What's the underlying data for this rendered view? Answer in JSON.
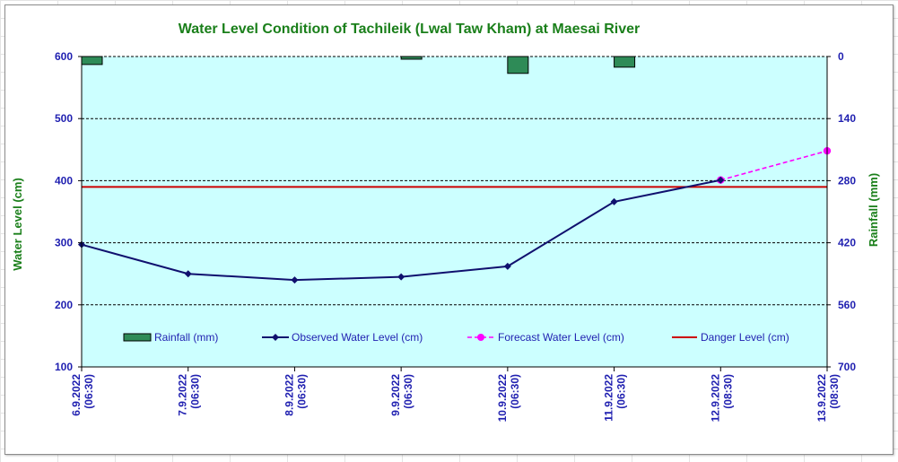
{
  "chart_data": {
    "type": "line",
    "title": "Water Level Condition  of  Tachileik  (Lwal  Taw  Kham)  at  Maesai  River",
    "ylabel_left": "Water Level (cm)",
    "ylabel_right": "Rainfall (mm)",
    "y_left_range": [
      100,
      600
    ],
    "y_left_ticks": [
      100,
      200,
      300,
      400,
      500,
      600
    ],
    "y_right_range": [
      0,
      700
    ],
    "y_right_ticks": [
      0,
      140,
      280,
      420,
      560,
      700
    ],
    "y_right_inverted": true,
    "grid": true,
    "legend_placement": "bottom-inside",
    "categories": [
      [
        "6.9.2022",
        "(06:30)"
      ],
      [
        "7.9.2022",
        "(06:30)"
      ],
      [
        "8.9.2022",
        "(06:30)"
      ],
      [
        "9.9.2022",
        "(06:30)"
      ],
      [
        "10.9.2022",
        "(06:30)"
      ],
      [
        "11.9.2022",
        "(06:30)"
      ],
      [
        "12.9.2022",
        "(08:30)"
      ],
      [
        "13.9.2022",
        "(08:30)"
      ]
    ],
    "rainfall": {
      "name": "Rainfall (mm)",
      "color": "#2e8b57",
      "bars": [
        {
          "index": 0,
          "value": 18
        },
        {
          "index": 3,
          "value": 6
        },
        {
          "index": 4,
          "value": 38
        },
        {
          "index": 5,
          "value": 24
        }
      ]
    },
    "observed": {
      "name": "Observed Water Level (cm)",
      "color": "#10106e",
      "values": [
        297,
        250,
        240,
        245,
        262,
        366,
        401
      ]
    },
    "forecast": {
      "name": "Forecast Water Level (cm)",
      "color": "#ff00ff",
      "points": [
        {
          "index": 6,
          "value": 401
        },
        {
          "index": 7,
          "value": 448
        }
      ]
    },
    "danger": {
      "name": "Danger Level (cm)",
      "color": "#cc0000",
      "value": 390
    }
  }
}
